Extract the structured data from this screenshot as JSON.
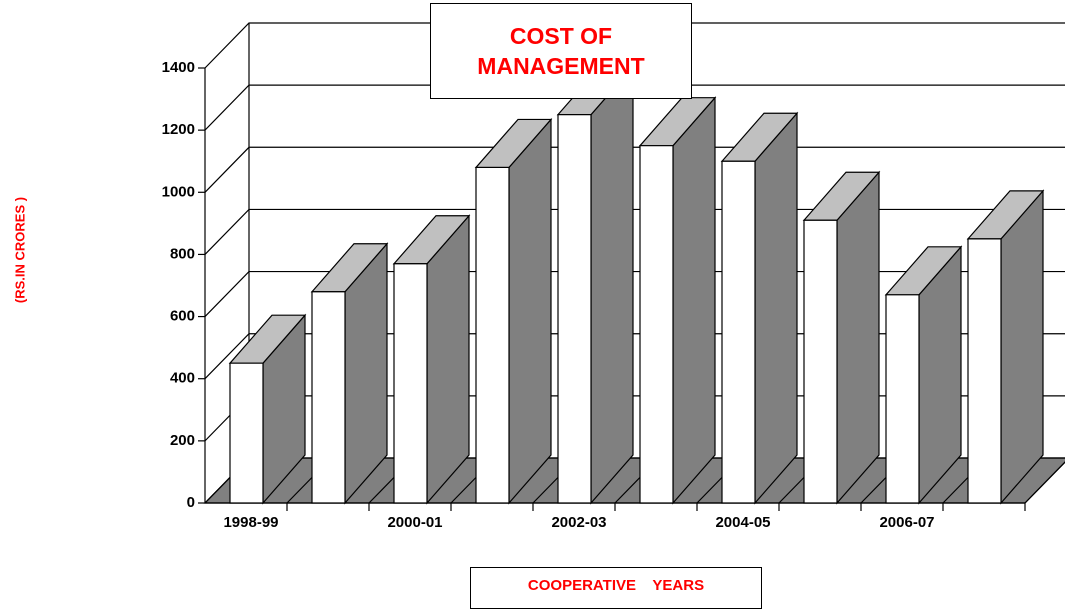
{
  "chart_data": {
    "type": "bar3d",
    "title": "COST OF MANAGEMENT",
    "x_label": "COOPERATIVE    YEARS",
    "y_label": "(RS.IN CRORES )",
    "categories": [
      "1998-99",
      null,
      "2000-01",
      null,
      "2002-03",
      null,
      "2004-05",
      null,
      "2006-07",
      null
    ],
    "values": [
      450,
      680,
      770,
      1080,
      1250,
      1150,
      1100,
      910,
      670,
      850
    ],
    "colors": {
      "front": "#ffffff",
      "top": "#c0c0c0",
      "side": "#808080"
    },
    "ylim": [
      0,
      1400
    ],
    "yticks": [
      0,
      200,
      400,
      600,
      800,
      1000,
      1200,
      1400
    ],
    "grid": true
  }
}
